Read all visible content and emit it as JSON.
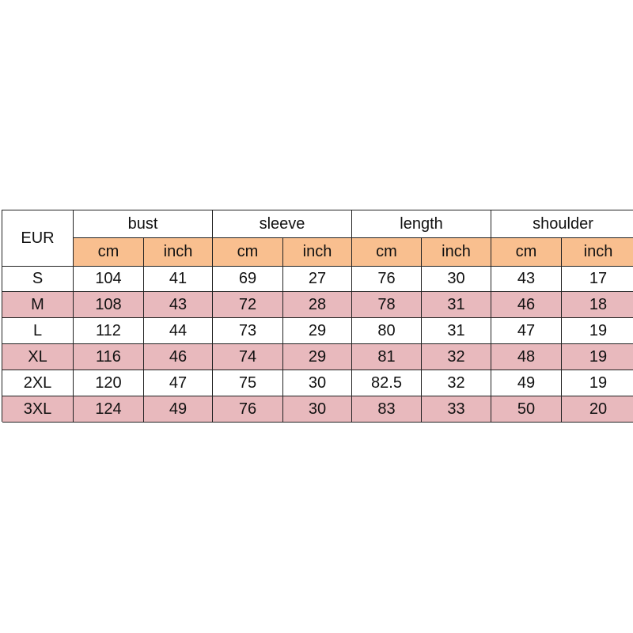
{
  "table": {
    "corner": "EUR",
    "groups": [
      "bust",
      "sleeve",
      "length",
      "shoulder"
    ],
    "units": [
      "cm",
      "inch",
      "cm",
      "inch",
      "cm",
      "inch",
      "cm",
      "inch"
    ],
    "rows": [
      [
        "S",
        104,
        41,
        69,
        27,
        76,
        30,
        43,
        17
      ],
      [
        "M",
        108,
        43,
        72,
        28,
        78,
        31,
        46,
        18
      ],
      [
        "L",
        112,
        44,
        73,
        29,
        80,
        31,
        47,
        19
      ],
      [
        "XL",
        116,
        46,
        74,
        29,
        81,
        32,
        48,
        19
      ],
      [
        "2XL",
        120,
        47,
        75,
        30,
        82.5,
        32,
        49,
        19
      ],
      [
        "3XL",
        124,
        49,
        76,
        30,
        83,
        33,
        50,
        20
      ]
    ]
  }
}
